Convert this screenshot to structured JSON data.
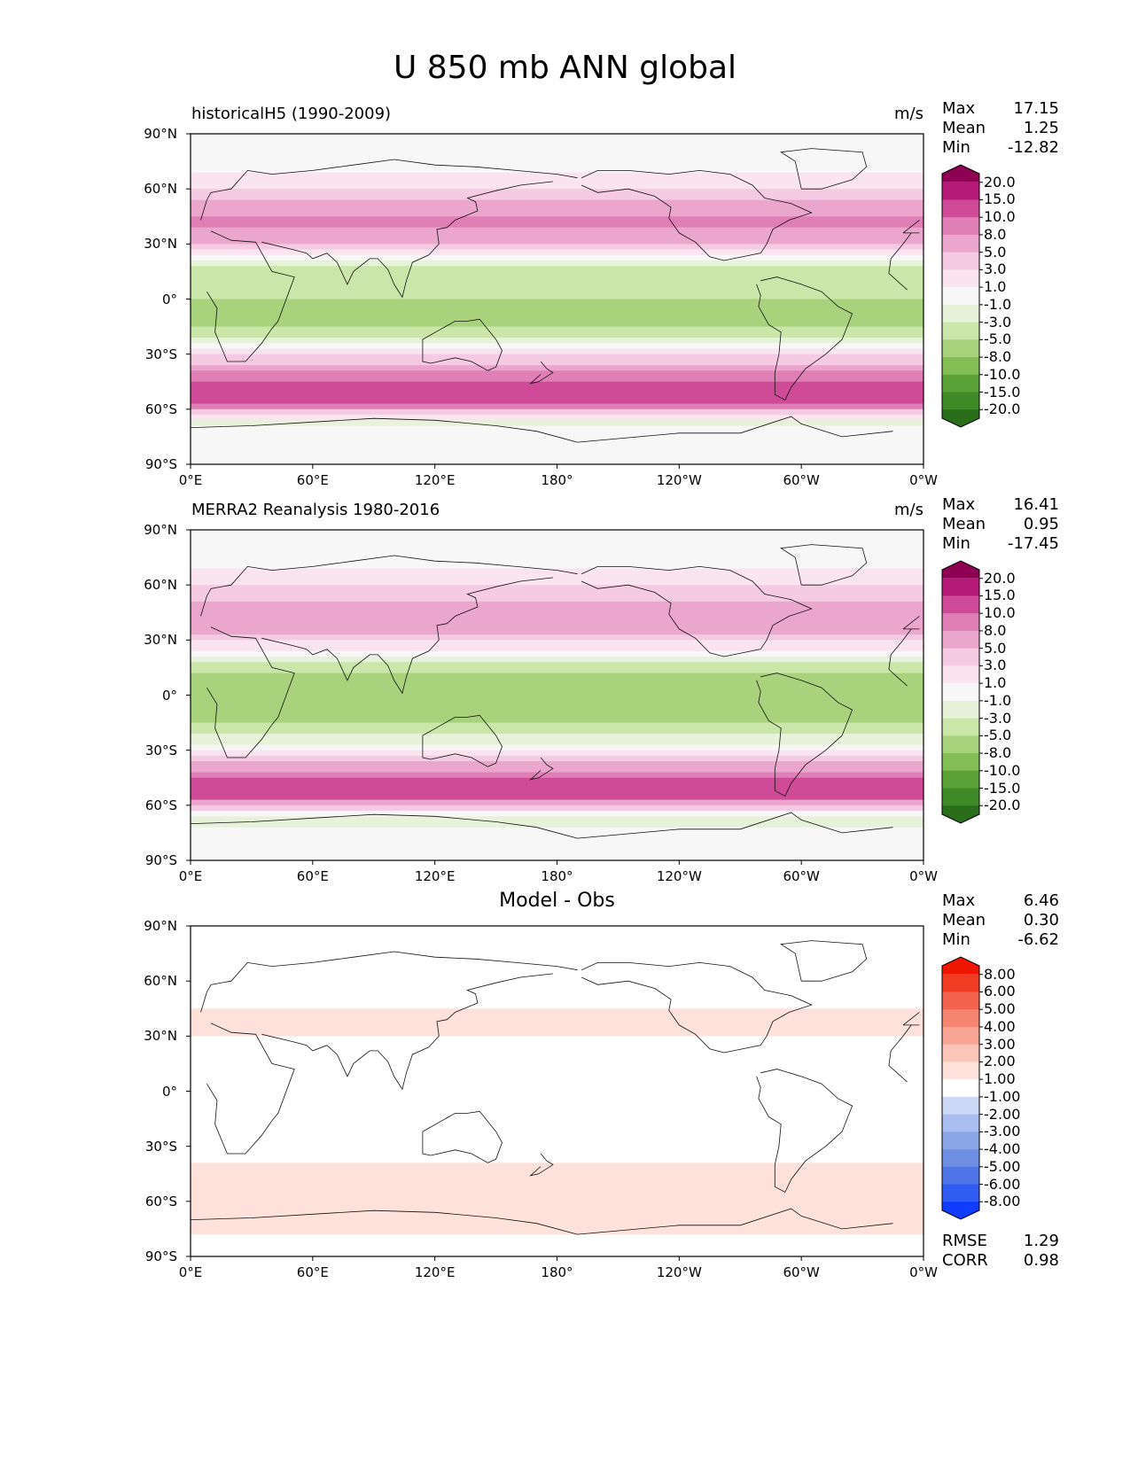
{
  "title": "U 850 mb ANN global",
  "lat_ticks": [
    "90°N",
    "60°N",
    "30°N",
    "0°",
    "30°S",
    "60°S",
    "90°S"
  ],
  "lon_ticks": [
    "0°E",
    "60°E",
    "120°E",
    "180°",
    "120°W",
    "60°W",
    "0°W"
  ],
  "colors": {
    "wind_scale": [
      "#2a6e1b",
      "#3e8a27",
      "#5aa237",
      "#82be54",
      "#a8d37c",
      "#cae6a9",
      "#e6f2d9",
      "#f7f7f7",
      "#f9e4ef",
      "#f4cbe3",
      "#eba6ce",
      "#df7fb5",
      "#cf4b97",
      "#b51a78",
      "#8e0152"
    ],
    "diff_scale": [
      "#0f3cff",
      "#2f5bf2",
      "#4f75e9",
      "#6e8ee3",
      "#8ba6e6",
      "#a9bdf0",
      "#cdd8f6",
      "#ffffff",
      "#fde1da",
      "#fbc5b9",
      "#f8a595",
      "#f58570",
      "#f3634d",
      "#f03c22",
      "#ee1600"
    ]
  },
  "chart_data": [
    {
      "type": "heatmap",
      "id": "test",
      "title": "historicalH5 (1990-2009)",
      "units": "m/s",
      "stats": {
        "max_label": "Max",
        "max": "17.15",
        "mean_label": "Mean",
        "mean": "1.25",
        "min_label": "Min",
        "min": "-12.82"
      },
      "colorbar_levels": [
        "20.0",
        "15.0",
        "10.0",
        "8.0",
        "5.0",
        "3.0",
        "1.0",
        "-1.0",
        "-3.0",
        "-5.0",
        "-8.0",
        "-10.0",
        "-15.0",
        "-20.0"
      ],
      "x_range": [
        0,
        360
      ],
      "y_range": [
        -90,
        90
      ],
      "zonal_mean_u": [
        {
          "lat": -90,
          "u": 0
        },
        {
          "lat": -75,
          "u": 1
        },
        {
          "lat": -68,
          "u": -2
        },
        {
          "lat": -62,
          "u": 4
        },
        {
          "lat": -55,
          "u": 12
        },
        {
          "lat": -50,
          "u": 14
        },
        {
          "lat": -42,
          "u": 9
        },
        {
          "lat": -35,
          "u": 5
        },
        {
          "lat": -28,
          "u": 1
        },
        {
          "lat": -20,
          "u": -4
        },
        {
          "lat": -10,
          "u": -6
        },
        {
          "lat": 0,
          "u": -5
        },
        {
          "lat": 10,
          "u": -5
        },
        {
          "lat": 18,
          "u": -3
        },
        {
          "lat": 25,
          "u": 2
        },
        {
          "lat": 35,
          "u": 7
        },
        {
          "lat": 42,
          "u": 9
        },
        {
          "lat": 50,
          "u": 6
        },
        {
          "lat": 60,
          "u": 3
        },
        {
          "lat": 70,
          "u": 1
        },
        {
          "lat": 90,
          "u": 0
        }
      ]
    },
    {
      "type": "heatmap",
      "id": "reference",
      "title": "MERRA2 Reanalysis 1980-2016",
      "units": "m/s",
      "stats": {
        "max_label": "Max",
        "max": "16.41",
        "mean_label": "Mean",
        "mean": "0.95",
        "min_label": "Min",
        "min": "-17.45"
      },
      "colorbar_levels": [
        "20.0",
        "15.0",
        "10.0",
        "8.0",
        "5.0",
        "3.0",
        "1.0",
        "-1.0",
        "-3.0",
        "-5.0",
        "-8.0",
        "-10.0",
        "-15.0",
        "-20.0"
      ],
      "x_range": [
        0,
        360
      ],
      "y_range": [
        -90,
        90
      ],
      "zonal_mean_u": [
        {
          "lat": -90,
          "u": 0
        },
        {
          "lat": -75,
          "u": 0
        },
        {
          "lat": -68,
          "u": -3
        },
        {
          "lat": -62,
          "u": 3
        },
        {
          "lat": -55,
          "u": 11
        },
        {
          "lat": -50,
          "u": 13
        },
        {
          "lat": -42,
          "u": 8
        },
        {
          "lat": -35,
          "u": 4
        },
        {
          "lat": -28,
          "u": 0
        },
        {
          "lat": -20,
          "u": -4
        },
        {
          "lat": -10,
          "u": -6
        },
        {
          "lat": 0,
          "u": -6
        },
        {
          "lat": 10,
          "u": -6
        },
        {
          "lat": 18,
          "u": -3
        },
        {
          "lat": 25,
          "u": 1
        },
        {
          "lat": 35,
          "u": 6
        },
        {
          "lat": 42,
          "u": 8
        },
        {
          "lat": 50,
          "u": 5
        },
        {
          "lat": 60,
          "u": 3
        },
        {
          "lat": 70,
          "u": 1
        },
        {
          "lat": 90,
          "u": 0
        }
      ]
    },
    {
      "type": "heatmap",
      "id": "difference",
      "title": "Model - Obs",
      "stats": {
        "max_label": "Max",
        "max": "6.46",
        "mean_label": "Mean",
        "mean": "0.30",
        "min_label": "Min",
        "min": "-6.62"
      },
      "extra_stats": {
        "rmse_label": "RMSE",
        "rmse": "1.29",
        "corr_label": "CORR",
        "corr": "0.98"
      },
      "colorbar_levels": [
        "8.00",
        "6.00",
        "5.00",
        "4.00",
        "3.00",
        "2.00",
        "1.00",
        "-1.00",
        "-2.00",
        "-3.00",
        "-4.00",
        "-5.00",
        "-6.00",
        "-8.00"
      ],
      "x_range": [
        0,
        360
      ],
      "y_range": [
        -90,
        90
      ],
      "zonal_mean_u": [
        {
          "lat": -90,
          "u": 0
        },
        {
          "lat": -70,
          "u": 1.5
        },
        {
          "lat": -60,
          "u": 1.5
        },
        {
          "lat": -50,
          "u": 1.2
        },
        {
          "lat": -40,
          "u": 1
        },
        {
          "lat": -30,
          "u": 0
        },
        {
          "lat": -10,
          "u": 0
        },
        {
          "lat": 0,
          "u": 0
        },
        {
          "lat": 10,
          "u": 0
        },
        {
          "lat": 20,
          "u": 0
        },
        {
          "lat": 30,
          "u": 1
        },
        {
          "lat": 40,
          "u": 1.5
        },
        {
          "lat": 60,
          "u": -0.5
        },
        {
          "lat": 75,
          "u": -0.5
        },
        {
          "lat": 90,
          "u": 0
        }
      ]
    }
  ]
}
